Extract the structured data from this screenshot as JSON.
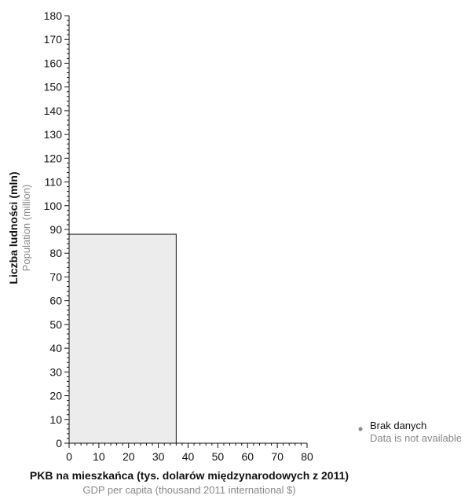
{
  "chart_data": {
    "type": "bar",
    "xlabel": "PKB na mieszkańca (tys. dolarów międzynarodowych z 2011)",
    "xlabel_sub": "GDP per capita (thousand 2011 international $)",
    "ylabel": "Liczba ludności (mln)",
    "ylabel_sub": "Population (million)",
    "xlim": [
      0,
      80
    ],
    "ylim": [
      0,
      180
    ],
    "xticks": [
      "0",
      "10",
      "20",
      "30",
      "40",
      "50",
      "60",
      "70",
      "80"
    ],
    "yticks": [
      "0",
      "10",
      "20",
      "30",
      "40",
      "50",
      "60",
      "70",
      "80",
      "90",
      "100",
      "110",
      "120",
      "130",
      "140",
      "150",
      "160",
      "170",
      "180"
    ],
    "bars": [
      {
        "x0": 0,
        "x1": 36,
        "y": 88,
        "fill": "#ececec",
        "stroke": "#111111"
      }
    ],
    "legend": {
      "placement": "right",
      "items": [
        {
          "label": "Brak danych",
          "sublabel": "Data is not available",
          "color": "#888888"
        }
      ]
    },
    "grid": false
  }
}
